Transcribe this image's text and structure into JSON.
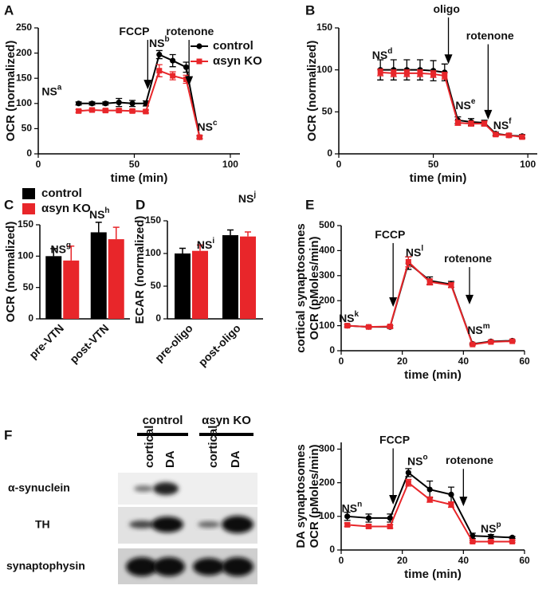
{
  "chart_data": [
    {
      "type": "line",
      "panel": "A",
      "xlabel": "time (min)",
      "ylabel": "OCR (normalized)",
      "x": [
        21,
        28,
        35,
        42,
        49,
        56,
        63,
        70,
        77,
        84
      ],
      "series": [
        {
          "name": "control",
          "color": "#000000",
          "marker": "circle",
          "values": [
            100,
            100,
            100,
            102,
            100,
            100,
            197,
            185,
            172,
            33
          ],
          "errors": [
            3,
            3,
            3,
            8,
            6,
            5,
            8,
            12,
            10,
            3
          ]
        },
        {
          "name": "αsyn KO",
          "color": "#e8262a",
          "marker": "square",
          "values": [
            85,
            87,
            86,
            86,
            85,
            84,
            165,
            155,
            148,
            33
          ],
          "errors": [
            3,
            3,
            3,
            3,
            3,
            3,
            12,
            8,
            8,
            3
          ]
        }
      ],
      "xlim": [
        0,
        105
      ],
      "ylim": [
        0,
        250
      ],
      "xticks": [
        0,
        50,
        100
      ],
      "yticks": [
        0,
        50,
        100,
        150,
        200,
        250
      ],
      "legend": "upper right",
      "annotations": [
        {
          "text": "FCCP"
        },
        {
          "text": "rotenone"
        },
        {
          "text": "NS",
          "sup": "a"
        },
        {
          "text": "NS",
          "sup": "b"
        },
        {
          "text": "NS",
          "sup": "c"
        }
      ]
    },
    {
      "type": "line",
      "panel": "B",
      "xlabel": "time (min)",
      "ylabel": "OCR (normalized)",
      "x": [
        22,
        29,
        36,
        43,
        50,
        56,
        63,
        70,
        77,
        83,
        90,
        97
      ],
      "series": [
        {
          "color": "#000000",
          "marker": "circle",
          "values": [
            100,
            100,
            100,
            100,
            99,
            97,
            40,
            38,
            37,
            24,
            22,
            21
          ],
          "errors": [
            12,
            12,
            12,
            12,
            12,
            10,
            4,
            4,
            3,
            2,
            2,
            2
          ]
        },
        {
          "color": "#e8262a",
          "marker": "square",
          "values": [
            97,
            96,
            96,
            96,
            95,
            93,
            37,
            36,
            36,
            23,
            22,
            20
          ],
          "errors": [
            4,
            4,
            4,
            4,
            4,
            4,
            3,
            3,
            3,
            2,
            2,
            2
          ]
        }
      ],
      "xlim": [
        0,
        105
      ],
      "ylim": [
        0,
        150
      ],
      "xticks": [
        0,
        50,
        100
      ],
      "yticks": [
        0,
        50,
        100,
        150
      ],
      "annotations": [
        {
          "text": "oligo"
        },
        {
          "text": "rotenone"
        },
        {
          "text": "NS",
          "sup": "d"
        },
        {
          "text": "NS",
          "sup": "e"
        },
        {
          "text": "NS",
          "sup": "f"
        }
      ]
    },
    {
      "type": "bar",
      "panel": "C",
      "ylabel": "OCR (normalized)",
      "categories": [
        "pre-VTN",
        "post-VTN"
      ],
      "series": [
        {
          "name": "control",
          "color": "#000000",
          "values": [
            100,
            138
          ],
          "errors": [
            12,
            16
          ]
        },
        {
          "name": "αsyn KO",
          "color": "#e8262a",
          "values": [
            93,
            127
          ],
          "errors": [
            23,
            19
          ]
        }
      ],
      "ylim": [
        0,
        150
      ],
      "yticks": [
        0,
        50,
        100,
        150
      ],
      "legend": "top",
      "annotations": [
        {
          "text": "NS",
          "sup": "g"
        },
        {
          "text": "NS",
          "sup": "h"
        }
      ]
    },
    {
      "type": "bar",
      "panel": "D",
      "ylabel": "ECAR (normalized)",
      "categories": [
        "pre-oligo",
        "post-oligo"
      ],
      "series": [
        {
          "color": "#000000",
          "values": [
            100,
            128
          ],
          "errors": [
            8,
            8
          ]
        },
        {
          "color": "#e8262a",
          "values": [
            104,
            126
          ],
          "errors": [
            9,
            7
          ]
        }
      ],
      "ylim": [
        0,
        150
      ],
      "yticks": [
        0,
        50,
        100,
        150
      ],
      "annotations": [
        {
          "text": "NS",
          "sup": "i"
        },
        {
          "text": "NS",
          "sup": "j"
        }
      ]
    },
    {
      "type": "line",
      "panel": "E",
      "xlabel": "time (min)",
      "ylabel": [
        "cortical synaptosomes",
        "OCR (pMoles/min)"
      ],
      "x": [
        2,
        9,
        16,
        22,
        29,
        36,
        43,
        49,
        56
      ],
      "series": [
        {
          "color": "#000000",
          "marker": "circle",
          "values": [
            100,
            95,
            95,
            350,
            280,
            265,
            27,
            37,
            40
          ],
          "errors": [
            5,
            5,
            5,
            25,
            15,
            12,
            3,
            3,
            3
          ]
        },
        {
          "color": "#e8262a",
          "marker": "square",
          "values": [
            100,
            95,
            97,
            355,
            275,
            262,
            25,
            35,
            38
          ],
          "errors": [
            5,
            5,
            5,
            20,
            12,
            10,
            3,
            3,
            3
          ]
        }
      ],
      "xlim": [
        0,
        60
      ],
      "ylim": [
        0,
        500
      ],
      "xticks": [
        0,
        20,
        40,
        60
      ],
      "yticks": [
        0,
        100,
        200,
        300,
        400,
        500
      ],
      "annotations": [
        {
          "text": "FCCP"
        },
        {
          "text": "rotenone"
        },
        {
          "text": "NS",
          "sup": "k"
        },
        {
          "text": "NS",
          "sup": "l"
        },
        {
          "text": "NS",
          "sup": "m"
        }
      ]
    },
    {
      "type": "line",
      "xlabel": "time (min)",
      "ylabel": [
        "DA synaptosomes",
        "OCR (pMoles/min)"
      ],
      "x": [
        2,
        9,
        16,
        22,
        29,
        36,
        43,
        49,
        56
      ],
      "series": [
        {
          "color": "#000000",
          "marker": "circle",
          "values": [
            100,
            95,
            95,
            230,
            180,
            165,
            42,
            40,
            37
          ],
          "errors": [
            12,
            12,
            12,
            12,
            25,
            22,
            8,
            6,
            3
          ]
        },
        {
          "color": "#e8262a",
          "marker": "square",
          "values": [
            75,
            70,
            70,
            200,
            150,
            135,
            25,
            25,
            25
          ],
          "errors": [
            5,
            5,
            5,
            10,
            8,
            8,
            3,
            3,
            3
          ]
        }
      ],
      "xlim": [
        0,
        60
      ],
      "ylim": [
        0,
        320
      ],
      "xticks": [
        0,
        20,
        40,
        60
      ],
      "yticks": [
        0,
        100,
        200,
        300
      ],
      "annotations": [
        {
          "text": "FCCP"
        },
        {
          "text": "rotenone"
        },
        {
          "text": "NS",
          "sup": "n"
        },
        {
          "text": "NS",
          "sup": "o"
        },
        {
          "text": "NS",
          "sup": "p"
        }
      ]
    }
  ],
  "blot": {
    "panel": "F",
    "groups": [
      "control",
      "αsyn KO"
    ],
    "lanes": [
      "cortical",
      "DA",
      "cortical",
      "DA"
    ],
    "rows": [
      "α-synuclein",
      "TH",
      "synaptophysin"
    ]
  }
}
